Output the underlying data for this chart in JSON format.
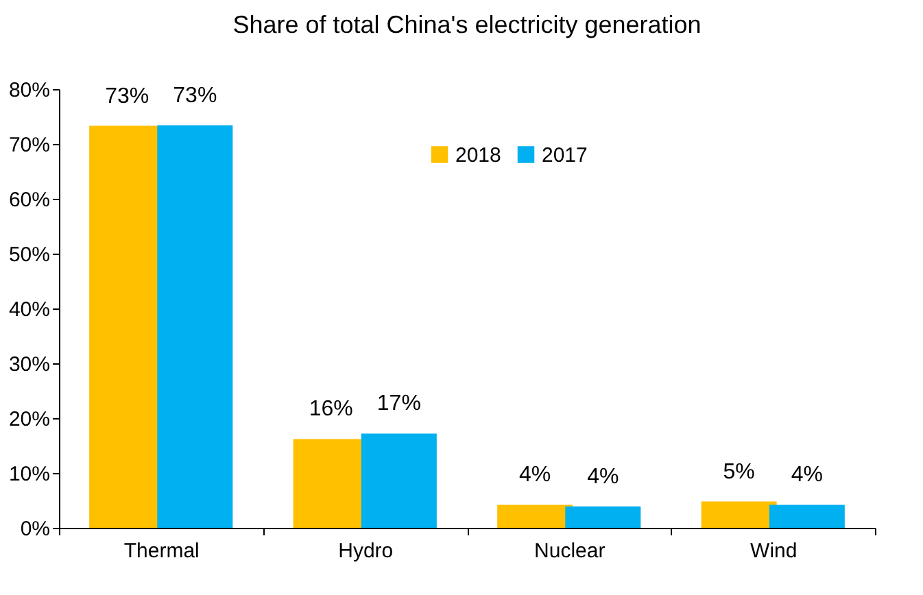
{
  "chart_data": {
    "type": "bar",
    "title": "Share of total China's electricity generation",
    "categories": [
      "Thermal",
      "Hydro",
      "Nuclear",
      "Wind"
    ],
    "series": [
      {
        "name": "2018",
        "color": "#ffc000",
        "values": [
          73.3,
          16.2,
          4.2,
          4.8
        ],
        "value_labels": [
          "73%",
          "16%",
          "4%",
          "5%"
        ]
      },
      {
        "name": "2017",
        "color": "#00b0f0",
        "values": [
          73.4,
          17.2,
          3.9,
          4.2
        ],
        "value_labels": [
          "73%",
          "17%",
          "4%",
          "4%"
        ]
      }
    ],
    "ylim": [
      0,
      80
    ],
    "yticks": [
      {
        "value": 0,
        "label": "0%"
      },
      {
        "value": 10,
        "label": "10%"
      },
      {
        "value": 20,
        "label": "20%"
      },
      {
        "value": 30,
        "label": "30%"
      },
      {
        "value": 40,
        "label": "40%"
      },
      {
        "value": 50,
        "label": "50%"
      },
      {
        "value": 60,
        "label": "60%"
      },
      {
        "value": 70,
        "label": "70%"
      },
      {
        "value": 80,
        "label": "80%"
      }
    ],
    "grid": false,
    "legend": "top right"
  }
}
